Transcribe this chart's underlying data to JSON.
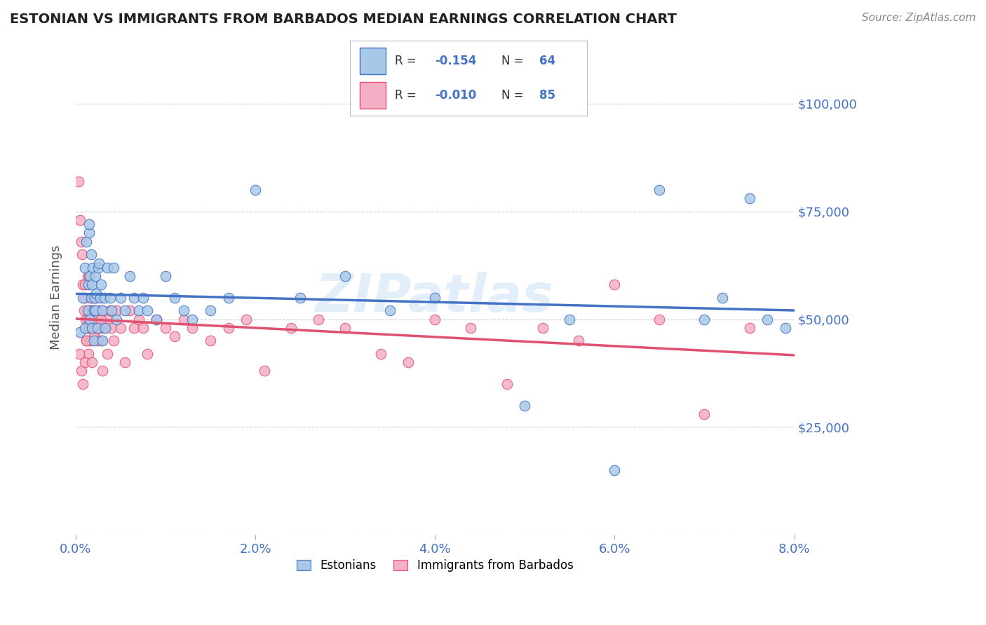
{
  "title": "ESTONIAN VS IMMIGRANTS FROM BARBADOS MEDIAN EARNINGS CORRELATION CHART",
  "source": "Source: ZipAtlas.com",
  "ylabel": "Median Earnings",
  "watermark": "ZIPatlas",
  "x_min": 0.0,
  "x_max": 0.08,
  "y_min": 0,
  "y_max": 110000,
  "y_ticks": [
    0,
    25000,
    50000,
    75000,
    100000
  ],
  "y_tick_labels": [
    "",
    "$25,000",
    "$50,000",
    "$75,000",
    "$100,000"
  ],
  "x_ticks": [
    0.0,
    0.02,
    0.04,
    0.06,
    0.08
  ],
  "x_tick_labels": [
    "0.0%",
    "2.0%",
    "4.0%",
    "6.0%",
    "8.0%"
  ],
  "color_estonian": "#a8c8e8",
  "color_barbados": "#f4afc4",
  "color_line_estonian": "#4472c4",
  "color_line_barbados": "#e05070",
  "color_axis_labels": "#4472c4",
  "color_title": "#222222",
  "background_color": "#ffffff",
  "grid_color": "#cccccc",
  "estonian_x": [
    0.0005,
    0.0008,
    0.001,
    0.001,
    0.0012,
    0.0013,
    0.0014,
    0.0015,
    0.0015,
    0.0016,
    0.0016,
    0.0017,
    0.0017,
    0.0018,
    0.0018,
    0.0019,
    0.002,
    0.002,
    0.0021,
    0.0022,
    0.0022,
    0.0023,
    0.0024,
    0.0025,
    0.0026,
    0.0027,
    0.0028,
    0.003,
    0.003,
    0.0032,
    0.0033,
    0.0035,
    0.0038,
    0.004,
    0.0042,
    0.0045,
    0.005,
    0.0055,
    0.006,
    0.0065,
    0.007,
    0.0075,
    0.008,
    0.009,
    0.01,
    0.011,
    0.012,
    0.013,
    0.015,
    0.017,
    0.02,
    0.025,
    0.03,
    0.035,
    0.04,
    0.05,
    0.055,
    0.06,
    0.065,
    0.07,
    0.072,
    0.075,
    0.077,
    0.079
  ],
  "estonian_y": [
    47000,
    55000,
    62000,
    48000,
    68000,
    52000,
    58000,
    70000,
    72000,
    60000,
    50000,
    65000,
    55000,
    58000,
    48000,
    62000,
    52000,
    45000,
    55000,
    60000,
    52000,
    56000,
    48000,
    62000,
    63000,
    55000,
    58000,
    52000,
    45000,
    55000,
    48000,
    62000,
    55000,
    52000,
    62000,
    50000,
    55000,
    52000,
    60000,
    55000,
    52000,
    55000,
    52000,
    50000,
    60000,
    55000,
    52000,
    50000,
    52000,
    55000,
    80000,
    55000,
    60000,
    52000,
    55000,
    30000,
    50000,
    15000,
    80000,
    50000,
    55000,
    78000,
    50000,
    48000
  ],
  "barbados_x": [
    0.0003,
    0.0005,
    0.0006,
    0.0007,
    0.0008,
    0.0009,
    0.001,
    0.001,
    0.0011,
    0.0012,
    0.0013,
    0.0013,
    0.0014,
    0.0014,
    0.0015,
    0.0015,
    0.0016,
    0.0016,
    0.0017,
    0.0017,
    0.0018,
    0.0018,
    0.0019,
    0.002,
    0.002,
    0.0021,
    0.0022,
    0.0023,
    0.0024,
    0.0025,
    0.0026,
    0.0027,
    0.0028,
    0.003,
    0.0032,
    0.0035,
    0.0038,
    0.004,
    0.0042,
    0.0045,
    0.005,
    0.0055,
    0.006,
    0.0065,
    0.007,
    0.0075,
    0.008,
    0.009,
    0.01,
    0.011,
    0.012,
    0.013,
    0.015,
    0.017,
    0.019,
    0.021,
    0.024,
    0.027,
    0.03,
    0.034,
    0.037,
    0.04,
    0.044,
    0.048,
    0.052,
    0.056,
    0.06,
    0.065,
    0.07,
    0.075,
    0.0004,
    0.0006,
    0.0008,
    0.001,
    0.0012,
    0.0014,
    0.0016,
    0.0018,
    0.002,
    0.0022,
    0.0024,
    0.0026,
    0.0028,
    0.003,
    0.0035
  ],
  "barbados_y": [
    82000,
    73000,
    68000,
    65000,
    58000,
    52000,
    55000,
    58000,
    50000,
    45000,
    60000,
    48000,
    52000,
    42000,
    45000,
    60000,
    52000,
    48000,
    55000,
    45000,
    50000,
    52000,
    48000,
    46000,
    52000,
    50000,
    48000,
    55000,
    48000,
    50000,
    52000,
    48000,
    45000,
    52000,
    48000,
    50000,
    52000,
    48000,
    45000,
    52000,
    48000,
    40000,
    52000,
    48000,
    50000,
    48000,
    42000,
    50000,
    48000,
    46000,
    50000,
    48000,
    45000,
    48000,
    50000,
    38000,
    48000,
    50000,
    48000,
    42000,
    40000,
    50000,
    48000,
    35000,
    48000,
    45000,
    58000,
    50000,
    28000,
    48000,
    42000,
    38000,
    35000,
    40000,
    45000,
    50000,
    48000,
    40000,
    55000,
    50000,
    45000,
    48000,
    50000,
    38000,
    42000
  ]
}
